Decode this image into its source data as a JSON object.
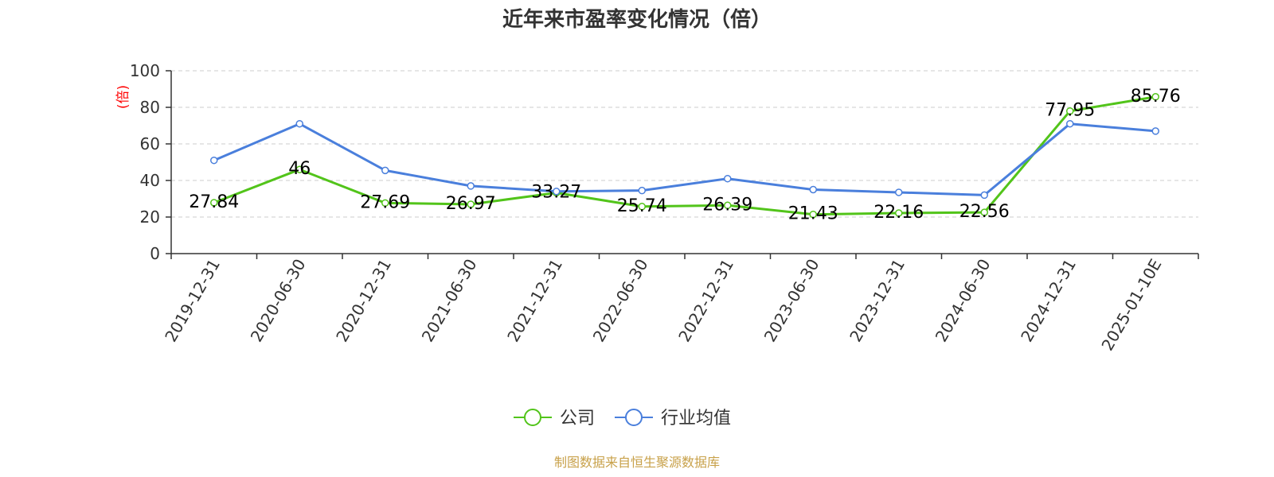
{
  "chart_data": {
    "type": "line",
    "title": "近年来市盈率变化情况（倍）",
    "ylabel": "(倍)",
    "xlabel": "",
    "ylim": [
      0,
      100
    ],
    "yticks": [
      0,
      20,
      40,
      60,
      80,
      100
    ],
    "grid": true,
    "legend_position": "bottom",
    "categories": [
      "2019-12-31",
      "2020-06-30",
      "2020-12-31",
      "2021-06-30",
      "2021-12-31",
      "2022-06-30",
      "2022-12-31",
      "2023-06-30",
      "2023-12-31",
      "2024-06-30",
      "2024-12-31",
      "2025-01-10E"
    ],
    "series": [
      {
        "name": "公司",
        "color": "#52c41a",
        "values": [
          27.84,
          46,
          27.69,
          26.97,
          33.27,
          25.74,
          26.39,
          21.43,
          22.16,
          22.56,
          77.95,
          85.76
        ],
        "labels": [
          "27.84",
          "46",
          "27.69",
          "26.97",
          "33.27",
          "25.74",
          "26.39",
          "21.43",
          "22.16",
          "22.56",
          "77.95",
          "85.76"
        ]
      },
      {
        "name": "行业均值",
        "color": "#4a7fdc",
        "values": [
          51,
          71,
          45.5,
          37,
          34,
          34.5,
          41,
          35,
          33.5,
          32,
          71,
          67
        ]
      }
    ]
  },
  "colors": {
    "title": "#333333",
    "axis": "#333333",
    "grid": "#cccccc",
    "ylabel": "#ff0000",
    "source": "#c8a14a"
  },
  "source_note": "制图数据来自恒生聚源数据库"
}
